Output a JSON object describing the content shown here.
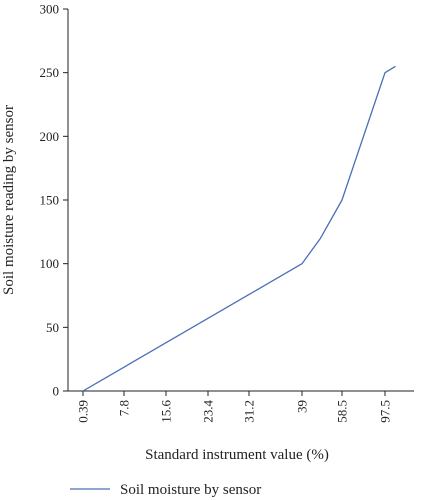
{
  "chart_data": {
    "type": "line",
    "title": "",
    "xlabel": "Standard instrument value (%)",
    "ylabel": "Soil moisture reading by sensor",
    "x_tick_labels": [
      "0.39",
      "7.8",
      "15.6",
      "23.4",
      "31.2",
      "39",
      "58.5",
      "97.5"
    ],
    "x_tick_positions": [
      0.39,
      7.8,
      15.6,
      23.4,
      31.2,
      39,
      58.5,
      97.5
    ],
    "y_ticks": [
      0,
      50,
      100,
      150,
      200,
      250,
      300
    ],
    "ylim": [
      0,
      300
    ],
    "grid": false,
    "legend_position": "bottom-left",
    "series": [
      {
        "name": "Soil moisture by sensor",
        "color": "#4a6fb5",
        "x": [
          0.39,
          39,
          48,
          58.5,
          97.5,
          107
        ],
        "y": [
          0,
          100,
          120,
          150,
          250,
          255
        ]
      }
    ]
  }
}
